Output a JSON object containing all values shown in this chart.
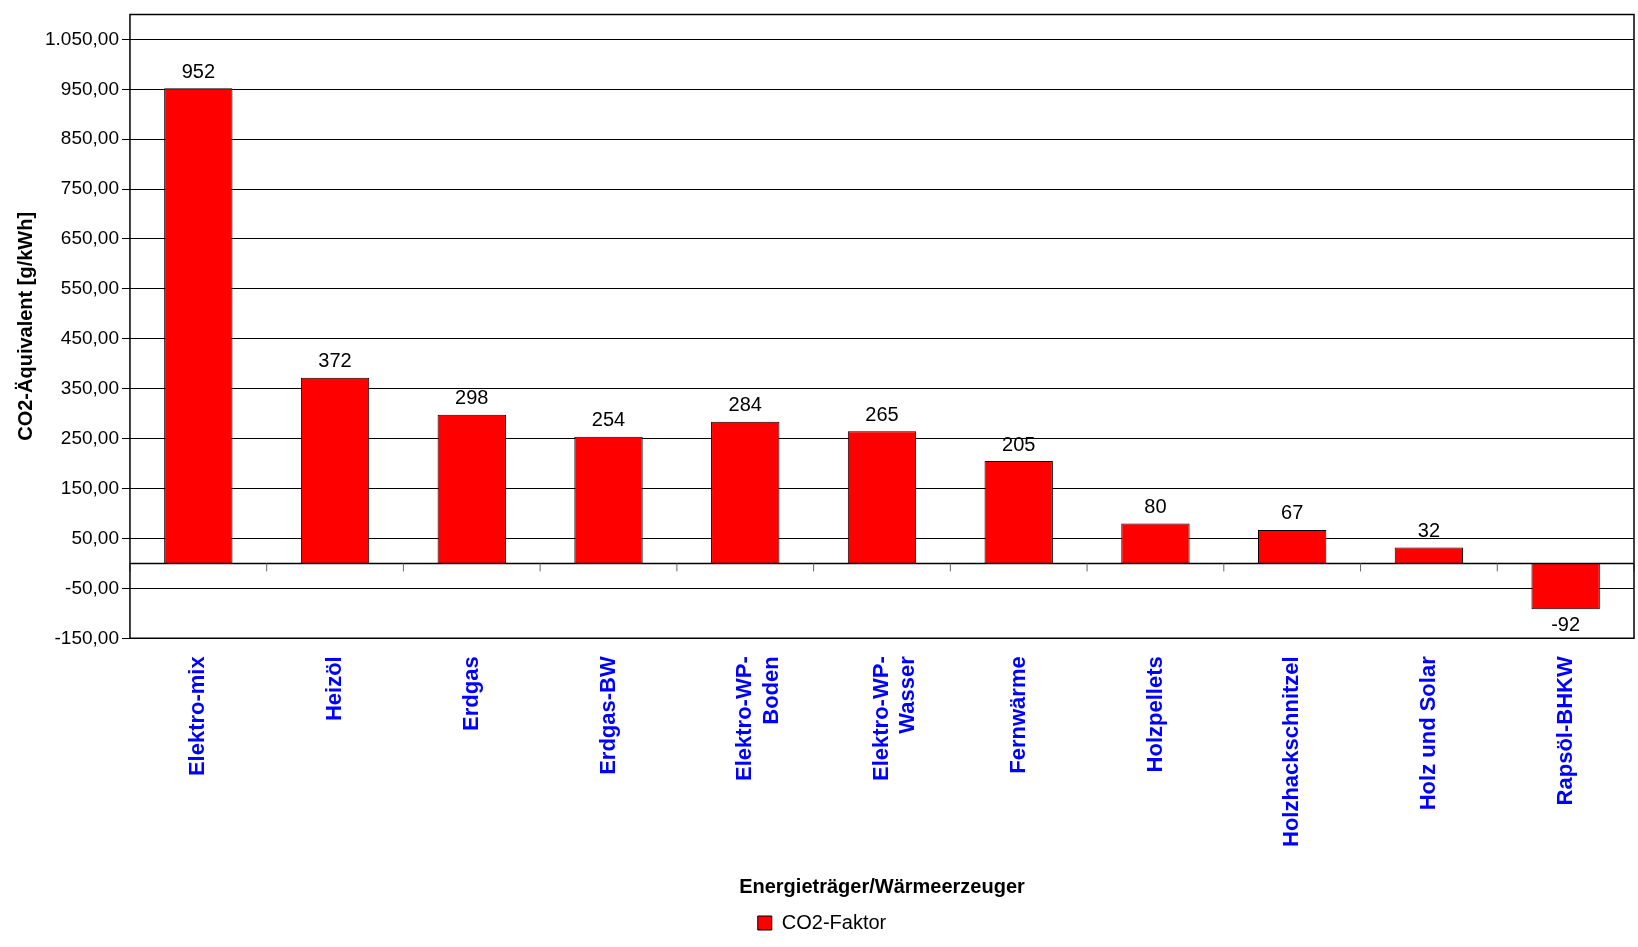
{
  "chart_data": {
    "type": "bar",
    "xlabel": "Energieträger/Wärmeerzeuger",
    "ylabel": "CO2-Äquivalent [g/kWh]",
    "categories": [
      "Elektro-mix",
      "Heizöl",
      "Erdgas",
      "Erdgas-BW",
      "Elektro-WP-Boden",
      "Elektro-WP-Wasser",
      "Fernwärme",
      "Holzpellets",
      "Holzhackschnitzel",
      "Holz und Solar",
      "Rapsöl-BHKW"
    ],
    "series": [
      {
        "name": "CO2-Faktor",
        "color": "#ff0000",
        "values": [
          952,
          372,
          298,
          254,
          284,
          265,
          205,
          80,
          67,
          32,
          -92
        ]
      }
    ],
    "data_labels": true,
    "ylim": [
      -150,
      1100
    ],
    "yticks": [
      {
        "value": -150,
        "label": "-150,00"
      },
      {
        "value": -50,
        "label": "-50,00"
      },
      {
        "value": 50,
        "label": "50,00"
      },
      {
        "value": 150,
        "label": "150,00"
      },
      {
        "value": 250,
        "label": "250,00"
      },
      {
        "value": 350,
        "label": "350,00"
      },
      {
        "value": 450,
        "label": "450,00"
      },
      {
        "value": 550,
        "label": "550,00"
      },
      {
        "value": 650,
        "label": "650,00"
      },
      {
        "value": 750,
        "label": "750,00"
      },
      {
        "value": 850,
        "label": "850,00"
      },
      {
        "value": 950,
        "label": "950,00"
      },
      {
        "value": 1050,
        "label": "1.050,00"
      }
    ],
    "grid": "y",
    "legend": "bottom"
  }
}
